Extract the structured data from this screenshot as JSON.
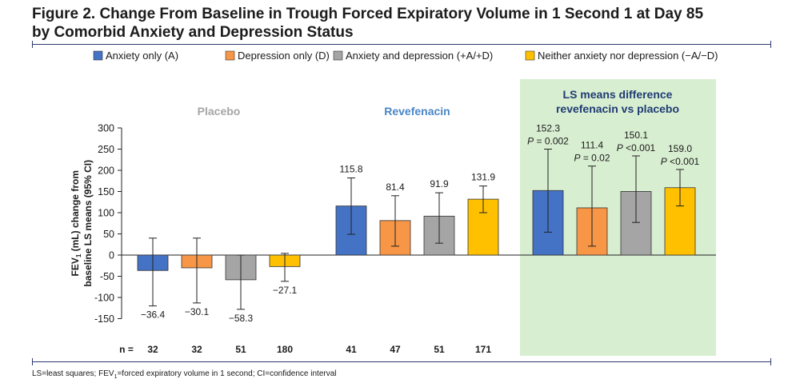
{
  "figure": {
    "title_line1": "Figure 2. Change From Baseline in Trough Forced Expiratory Volume in 1 Second 1 at Day 85",
    "title_line2": "by Comorbid Anxiety and Depression Status",
    "footnote_prefix": "LS=least squares; FEV",
    "footnote_sub": "1",
    "footnote_suffix": "=forced expiratory volume in 1 second; CI=confidence interval"
  },
  "chart_data": {
    "type": "bar",
    "ylabel_line1_prefix": "FEV",
    "ylabel_line1_sub": "1",
    "ylabel_line1_suffix": " (mL) change from",
    "ylabel_line2": "baseline LS means (95% CI)",
    "ylim": [
      -150,
      300
    ],
    "yticks": [
      300,
      250,
      200,
      150,
      100,
      50,
      0,
      -50,
      -100,
      -150
    ],
    "legend_position": "top",
    "legend": [
      {
        "label": "Anxiety only (A)",
        "color": "#4472c4"
      },
      {
        "label": "Depression only (D)",
        "color": "#f79646"
      },
      {
        "label": "Anxiety and depression (+A/+D)",
        "color": "#a5a5a5"
      },
      {
        "label": "Neither anxiety nor depression (−A/−D)",
        "color": "#ffc000"
      }
    ],
    "n_prefix": "n =",
    "groups": [
      {
        "title": "Placebo",
        "title_color": "#a5a5a5",
        "bars": [
          {
            "value": -36.4,
            "label": "−36.4",
            "ci_low": -120,
            "ci_high": 40,
            "n": "32"
          },
          {
            "value": -30.1,
            "label": "−30.1",
            "ci_low": -113,
            "ci_high": 40,
            "n": "32"
          },
          {
            "value": -58.3,
            "label": "−58.3",
            "ci_low": -128,
            "ci_high": 0,
            "n": "51"
          },
          {
            "value": -27.1,
            "label": "−27.1",
            "ci_low": -62,
            "ci_high": 4,
            "n": "180"
          }
        ]
      },
      {
        "title": "Revefenacin",
        "title_color": "#4a86c6",
        "bars": [
          {
            "value": 115.8,
            "label": "115.8",
            "ci_low": 49,
            "ci_high": 182,
            "n": "41"
          },
          {
            "value": 81.4,
            "label": "81.4",
            "ci_low": 21,
            "ci_high": 140,
            "n": "47"
          },
          {
            "value": 91.9,
            "label": "91.9",
            "ci_low": 28,
            "ci_high": 147,
            "n": "51"
          },
          {
            "value": 131.9,
            "label": "131.9",
            "ci_low": 100,
            "ci_high": 163,
            "n": "171"
          }
        ]
      },
      {
        "title_line1": "LS means difference",
        "title_line2": "revefenacin vs placebo",
        "title_color": "#1f3b73",
        "panel_color": "#d8eed1",
        "bars": [
          {
            "value": 152.3,
            "label": "152.3",
            "p_label": "P",
            "p_value": " = 0.002",
            "ci_low": 54,
            "ci_high": 250
          },
          {
            "value": 111.4,
            "label": "111.4",
            "p_label": "P",
            "p_value": " = 0.02",
            "ci_low": 21,
            "ci_high": 210
          },
          {
            "value": 150.1,
            "label": "150.1",
            "p_label": "P",
            "p_value": " <0.001",
            "ci_low": 77,
            "ci_high": 234
          },
          {
            "value": 159.0,
            "label": "159.0",
            "p_label": "P",
            "p_value": " <0.001",
            "ci_low": 116,
            "ci_high": 202
          }
        ]
      }
    ]
  }
}
